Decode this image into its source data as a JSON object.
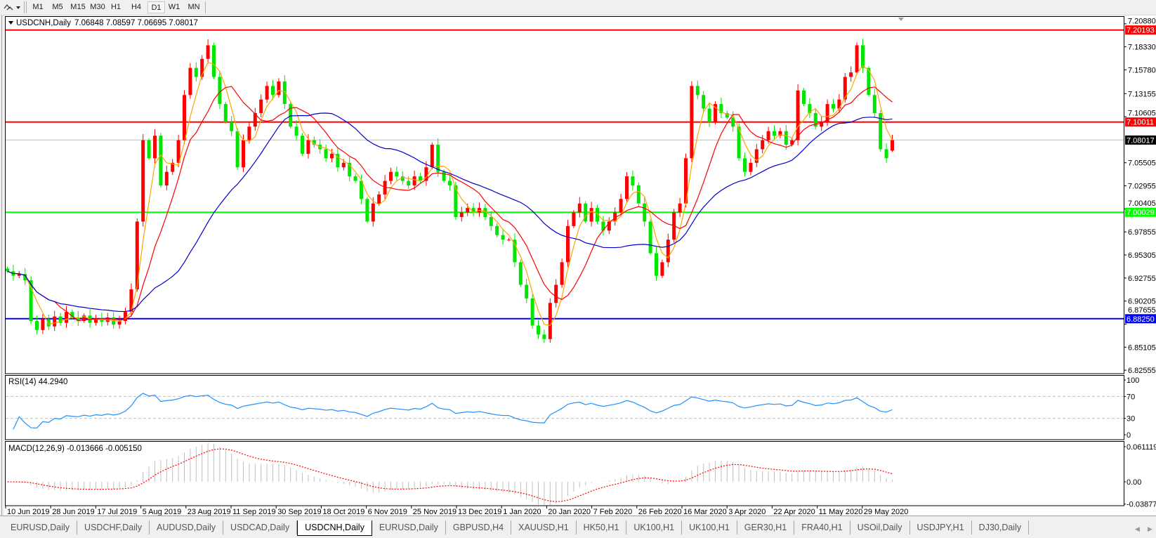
{
  "toolbar": {
    "timeframes": [
      "M1",
      "M5",
      "M15",
      "M30",
      "H1",
      "H4",
      "D1",
      "W1",
      "MN"
    ],
    "active": "D1"
  },
  "chart": {
    "symbol": "USDCNH,Daily",
    "ohlc": "7.06848 7.08597 7.06695 7.08017",
    "rsi_label": "RSI(14) 44.2940",
    "macd_label": "MACD(12,26,9) -0.013666 -0.005150",
    "price_ticks": [
      "7.20880",
      "7.18330",
      "7.15780",
      "7.13155",
      "7.10605",
      "7.05505",
      "7.02955",
      "7.00405",
      "6.97855",
      "6.95305",
      "6.92755",
      "6.90205",
      "6.87655",
      "6.85105",
      "6.82555"
    ],
    "rsi_ticks": [
      "100",
      "70",
      "30",
      "0"
    ],
    "macd_ticks": [
      "0.061119",
      "0.00",
      "-0.038777"
    ],
    "date_ticks": [
      "10 Jun 2019",
      "28 Jun 2019",
      "17 Jul 2019",
      "5 Aug 2019",
      "23 Aug 2019",
      "11 Sep 2019",
      "30 Sep 2019",
      "18 Oct 2019",
      "6 Nov 2019",
      "25 Nov 2019",
      "13 Dec 2019",
      "1 Jan 2020",
      "20 Jan 2020",
      "7 Feb 2020",
      "26 Feb 2020",
      "16 Mar 2020",
      "3 Apr 2020",
      "22 Apr 2020",
      "11 May 2020",
      "29 May 2020"
    ],
    "levels": [
      {
        "price": 7.20193,
        "label": "7.20193",
        "color": "#ff0000",
        "text_color": "#ffffff"
      },
      {
        "price": 7.10011,
        "label": "7.10011",
        "color": "#ff0000",
        "text_color": "#ffffff"
      },
      {
        "price": 7.00029,
        "label": "7.00029",
        "color": "#00ff00",
        "text_color": "#ffffff"
      },
      {
        "price": 6.8825,
        "label": "6.88250",
        "color": "#0000ff",
        "text_color": "#ffffff"
      }
    ],
    "current_price": {
      "price": 7.08017,
      "label": "7.08017",
      "color": "#000000"
    },
    "colors": {
      "up": "#ff0000",
      "down": "#00e600",
      "ma_fast": "#ffa500",
      "ma_mid": "#ff0000",
      "ma_slow": "#0000cc",
      "rsi": "#1e90ff",
      "macd_hist": "#c0c0c0",
      "macd_signal": "#ff0000"
    }
  },
  "chart_data": [
    {
      "type": "candlestick",
      "title": "USDCNH,Daily",
      "ylim": [
        6.82555,
        7.2088
      ],
      "closes_approx": [
        6.935,
        6.93,
        6.932,
        6.925,
        6.88,
        6.87,
        6.882,
        6.874,
        6.885,
        6.878,
        6.89,
        6.884,
        6.88,
        6.886,
        6.878,
        6.883,
        6.879,
        6.884,
        6.876,
        6.88,
        6.89,
        6.915,
        6.99,
        7.08,
        7.06,
        7.085,
        7.03,
        7.045,
        7.055,
        7.08,
        7.13,
        7.16,
        7.15,
        7.17,
        7.185,
        7.15,
        7.12,
        7.1,
        7.09,
        7.05,
        7.08,
        7.095,
        7.11,
        7.125,
        7.14,
        7.13,
        7.145,
        7.12,
        7.095,
        7.085,
        7.065,
        7.08,
        7.075,
        7.07,
        7.06,
        7.065,
        7.05,
        7.055,
        7.04,
        7.035,
        7.015,
        6.99,
        7.01,
        7.02,
        7.035,
        7.045,
        7.04,
        7.035,
        7.03,
        7.04,
        7.035,
        7.05,
        7.075,
        7.045,
        7.035,
        7.03,
        6.995,
        7.0,
        7.005,
        7.0,
        7.005,
        6.995,
        6.985,
        6.975,
        6.97,
        6.97,
        6.945,
        6.92,
        6.905,
        6.875,
        6.865,
        6.86,
        6.9,
        6.92,
        6.945,
        6.985,
        7.0,
        7.01,
        6.99,
        7.005,
        6.99,
        6.98,
        6.99,
        7.0,
        7.015,
        7.04,
        7.03,
        7.01,
        6.99,
        6.955,
        6.93,
        6.945,
        6.97,
        7.0,
        7.01,
        7.06,
        7.14,
        7.13,
        7.115,
        7.1,
        7.12,
        7.11,
        7.105,
        7.095,
        7.06,
        7.045,
        7.055,
        7.07,
        7.08,
        7.09,
        7.085,
        7.09,
        7.075,
        7.08,
        7.135,
        7.12,
        7.11,
        7.095,
        7.1,
        7.12,
        7.115,
        7.125,
        7.15,
        7.155,
        7.185,
        7.16,
        7.13,
        7.11,
        7.07,
        7.06,
        7.08017
      ],
      "last_bar": {
        "open": 7.06848,
        "high": 7.08597,
        "low": 7.06695,
        "close": 7.08017
      }
    },
    {
      "type": "line",
      "title": "RSI(14) 44.2940",
      "ylim": [
        0,
        100
      ],
      "levels": [
        70,
        30
      ],
      "last_value": 44.294
    },
    {
      "type": "bar",
      "title": "MACD(12,26,9) -0.013666 -0.005150",
      "ylim": [
        -0.038777,
        0.061119
      ],
      "last_main": -0.013666,
      "last_signal": -0.00515
    }
  ]
}
